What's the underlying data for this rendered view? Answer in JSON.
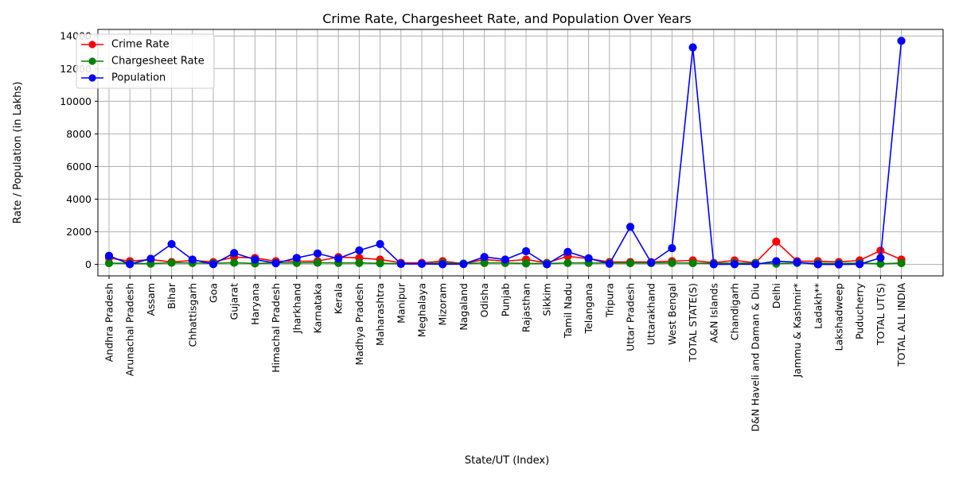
{
  "chart_data": {
    "type": "line",
    "title": "Crime Rate, Chargesheet Rate, and Population Over Years",
    "xlabel": "State/UT (Index)",
    "ylabel": "Rate / Population (in Lakhs)",
    "ylim": [
      -700,
      14400
    ],
    "yticks": [
      0,
      2000,
      4000,
      6000,
      8000,
      10000,
      12000,
      14000
    ],
    "ytick_labels": [
      "0",
      "2000",
      "4000",
      "6000",
      "8000",
      "10000",
      "12000",
      "14000"
    ],
    "grid": true,
    "legend_position": "top-left",
    "categories": [
      "Andhra Pradesh",
      "Arunachal Pradesh",
      "Assam",
      "Bihar",
      "Chhattisgarh",
      "Goa",
      "Gujarat",
      "Haryana",
      "Himachal Pradesh",
      "Jharkhand",
      "Karnataka",
      "Kerala",
      "Madhya Pradesh",
      "Maharashtra",
      "Manipur",
      "Meghalaya",
      "Mizoram",
      "Nagaland",
      "Odisha",
      "Punjab",
      "Rajasthan",
      "Sikkim",
      "Tamil Nadu",
      "Telangana",
      "Tripura",
      "Uttar Pradesh",
      "Uttarakhand",
      "West Bengal",
      "TOTAL STATE(S)",
      "A&N Islands",
      "Chandigarh",
      "D&N Haveli and Daman & Diu",
      "Delhi",
      "Jammu & Kashmir*",
      "Ladakh**",
      "Lakshadweep",
      "Puducherry",
      "TOTAL UT(S)",
      "TOTAL ALL INDIA"
    ],
    "series": [
      {
        "name": "Crime Rate",
        "color": "#ff0000",
        "values": [
          400,
          200,
          300,
          150,
          250,
          150,
          450,
          400,
          200,
          200,
          200,
          450,
          400,
          300,
          100,
          100,
          200,
          50,
          300,
          200,
          300,
          100,
          500,
          350,
          150,
          150,
          150,
          200,
          250,
          100,
          250,
          100,
          1400,
          200,
          200,
          150,
          250,
          850,
          300
        ]
      },
      {
        "name": "Chargesheet Rate",
        "color": "#008000",
        "values": [
          80,
          60,
          50,
          100,
          90,
          70,
          100,
          60,
          90,
          90,
          100,
          90,
          90,
          70,
          40,
          40,
          90,
          50,
          90,
          90,
          60,
          60,
          90,
          90,
          80,
          80,
          80,
          90,
          80,
          60,
          80,
          70,
          50,
          90,
          70,
          50,
          80,
          40,
          80
        ]
      },
      {
        "name": "Population",
        "color": "#0000ff",
        "values": [
          530,
          15,
          350,
          1250,
          300,
          15,
          700,
          300,
          75,
          400,
          670,
          360,
          860,
          1250,
          30,
          35,
          12,
          22,
          460,
          300,
          810,
          7,
          770,
          380,
          40,
          2300,
          115,
          1000,
          13300,
          4,
          12,
          10,
          200,
          140,
          3,
          1,
          15,
          400,
          13700
        ]
      }
    ]
  }
}
